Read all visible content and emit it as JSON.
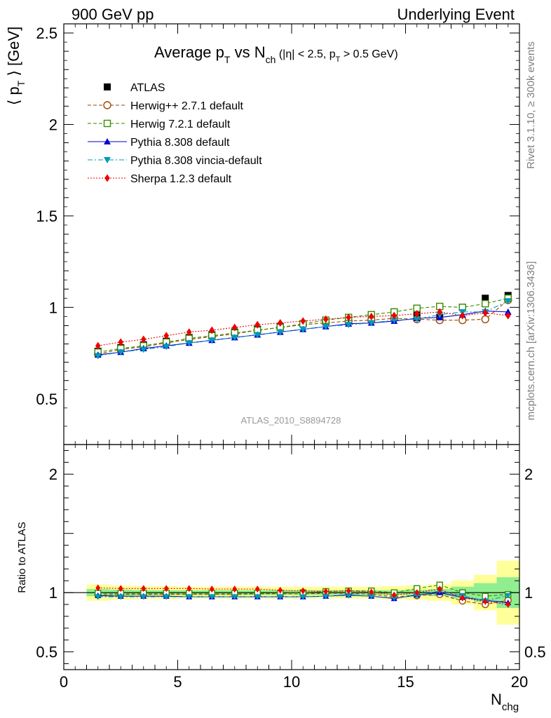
{
  "header": {
    "left": "900 GeV pp",
    "right": "Underlying Event"
  },
  "side_labels": {
    "rivet": "Rivet 3.1.10, ≥ 300k events",
    "mcplots": "mcplots.cern.ch [arXiv:1306.3436]"
  },
  "watermark": "ATLAS_2010_S8894728",
  "chart_data": [
    {
      "type": "scatter",
      "title": "Average pT vs Nch (|η| < 2.5, pT > 0.5 GeV)",
      "title_parts": {
        "t1": "Average p",
        "t1sub": "T",
        "t2": " vs N",
        "t2sub": "ch",
        "t3": " (|η| < 2.5, p",
        "t3sub": "T",
        "t4": " > 0.5 GeV)"
      },
      "ylabel": "⟨ pT ⟩ [GeV]",
      "ylabel_parts": {
        "pre": "⟨ p",
        "sub": "T",
        "post": " ⟩ [GeV]"
      },
      "xlim": [
        0,
        20
      ],
      "ylim": [
        0.25,
        2.55
      ],
      "y_ticks": [
        "0.5",
        "1",
        "1.5",
        "2",
        "2.5"
      ],
      "legend_position": "top-left",
      "x": [
        1.5,
        2.5,
        3.5,
        4.5,
        5.5,
        6.5,
        7.5,
        8.5,
        9.5,
        10.5,
        11.5,
        12.5,
        13.5,
        14.5,
        15.5,
        16.5,
        17.5,
        18.5,
        19.5
      ],
      "series": [
        {
          "name": "ATLAS",
          "color": "#000000",
          "marker": "square",
          "line": "none",
          "values": [
            0.76,
            0.78,
            0.795,
            0.815,
            0.835,
            0.85,
            0.865,
            0.88,
            0.895,
            0.91,
            0.92,
            0.93,
            0.945,
            0.975,
            0.96,
            0.945,
            1.0,
            1.05,
            1.065
          ]
        },
        {
          "name": "Herwig++ 2.7.1 default",
          "color": "#9a4a00",
          "marker": "open-circle",
          "line": "dashed",
          "values": [
            0.745,
            0.77,
            0.785,
            0.805,
            0.825,
            0.84,
            0.855,
            0.875,
            0.89,
            0.905,
            0.915,
            0.925,
            0.93,
            0.94,
            0.935,
            0.93,
            0.93,
            0.935,
            1.04
          ]
        },
        {
          "name": "Herwig 7.2.1 default",
          "color": "#3a8a00",
          "marker": "open-square",
          "line": "dashed",
          "values": [
            0.755,
            0.775,
            0.79,
            0.81,
            0.83,
            0.845,
            0.86,
            0.875,
            0.89,
            0.91,
            0.93,
            0.945,
            0.96,
            0.975,
            0.995,
            1.005,
            1.0,
            1.02,
            1.05
          ]
        },
        {
          "name": "Pythia 8.308 default",
          "color": "#0000d0",
          "marker": "triangle-up",
          "line": "solid",
          "values": [
            0.74,
            0.755,
            0.775,
            0.79,
            0.805,
            0.82,
            0.835,
            0.85,
            0.865,
            0.88,
            0.895,
            0.91,
            0.915,
            0.925,
            0.94,
            0.945,
            0.96,
            0.98,
            0.975
          ]
        },
        {
          "name": "Pythia 8.308 vincia-default",
          "color": "#0099bb",
          "marker": "triangle-down",
          "line": "dashdot",
          "values": [
            0.735,
            0.755,
            0.77,
            0.785,
            0.805,
            0.82,
            0.835,
            0.85,
            0.865,
            0.88,
            0.895,
            0.905,
            0.915,
            0.93,
            0.935,
            0.96,
            0.975,
            0.975,
            1.035
          ]
        },
        {
          "name": "Sherpa 1.2.3 default",
          "color": "#ee0000",
          "marker": "diamond",
          "line": "dotted",
          "values": [
            0.79,
            0.81,
            0.825,
            0.845,
            0.865,
            0.875,
            0.89,
            0.905,
            0.915,
            0.925,
            0.935,
            0.945,
            0.95,
            0.955,
            0.965,
            0.975,
            0.955,
            0.97,
            0.955
          ]
        }
      ]
    },
    {
      "type": "scatter",
      "ylabel": "Ratio to ATLAS",
      "xlabel": "Nchg",
      "xlabel_parts": {
        "main": "N",
        "sub": "chg"
      },
      "xlim": [
        0,
        20
      ],
      "ylim": [
        0.35,
        2.25
      ],
      "x_ticks": [
        "0",
        "5",
        "10",
        "15",
        "20"
      ],
      "y_ticks": [
        "0.5",
        "1",
        "2"
      ],
      "reference_line": 1,
      "bands": {
        "stat_color": "#90ee90",
        "total_color": "#ffff99",
        "stat_halfwidth": [
          0.03,
          0.025,
          0.022,
          0.02,
          0.02,
          0.02,
          0.02,
          0.02,
          0.02,
          0.02,
          0.02,
          0.02,
          0.02,
          0.02,
          0.025,
          0.03,
          0.05,
          0.08,
          0.13
        ],
        "total_halfwidth": [
          0.07,
          0.06,
          0.055,
          0.055,
          0.05,
          0.05,
          0.05,
          0.05,
          0.05,
          0.05,
          0.05,
          0.05,
          0.05,
          0.055,
          0.06,
          0.07,
          0.1,
          0.15,
          0.27
        ]
      },
      "series": [
        {
          "name": "Herwig++ 2.7.1 default",
          "values": [
            0.98,
            0.985,
            0.985,
            0.985,
            0.985,
            0.985,
            0.985,
            0.99,
            0.99,
            0.99,
            0.995,
            0.995,
            0.985,
            0.965,
            0.975,
            0.985,
            0.93,
            0.9,
            0.935
          ]
        },
        {
          "name": "Herwig 7.2.1 default",
          "values": [
            0.995,
            0.995,
            0.995,
            0.995,
            0.995,
            0.995,
            0.995,
            0.995,
            0.995,
            1.0,
            1.01,
            1.015,
            1.015,
            1.0,
            1.035,
            1.065,
            1.0,
            0.97,
            0.985
          ]
        },
        {
          "name": "Pythia 8.308 default",
          "values": [
            0.975,
            0.97,
            0.97,
            0.97,
            0.965,
            0.965,
            0.965,
            0.965,
            0.965,
            0.965,
            0.97,
            0.98,
            0.97,
            0.95,
            0.98,
            1.0,
            0.96,
            0.935,
            0.915
          ]
        },
        {
          "name": "Pythia 8.308 vincia-default",
          "values": [
            0.965,
            0.965,
            0.965,
            0.965,
            0.965,
            0.965,
            0.965,
            0.965,
            0.965,
            0.965,
            0.97,
            0.975,
            0.97,
            0.955,
            0.975,
            1.015,
            0.975,
            0.93,
            0.975
          ]
        },
        {
          "name": "Sherpa 1.2.3 default",
          "values": [
            1.04,
            1.035,
            1.035,
            1.035,
            1.035,
            1.03,
            1.03,
            1.03,
            1.02,
            1.015,
            1.01,
            1.015,
            1.005,
            0.98,
            1.0,
            1.03,
            0.955,
            0.925,
            0.9
          ]
        }
      ]
    }
  ]
}
